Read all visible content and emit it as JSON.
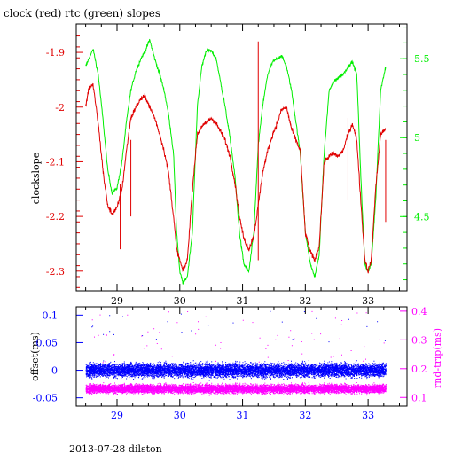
{
  "title": "clock (red) rtc (green) slopes",
  "footer": "2013-07-28 dilston",
  "colors": {
    "clock": "#e00000",
    "rtc": "#00ee00",
    "offset": "#0000ff",
    "rndtrip": "#ff00ff",
    "axis": "#000000"
  },
  "chart_data": [
    {
      "type": "line",
      "title": "clock (red) rtc (green) slopes",
      "ylabel": "clockslope",
      "x_ticks": [
        "29",
        "30",
        "31",
        "32",
        "33"
      ],
      "x_tick_values": [
        29,
        30,
        31,
        32,
        33
      ],
      "xlim": [
        28.35,
        33.62
      ],
      "y_ticks": [
        "-1.9",
        "-2",
        "-2.1",
        "-2.2",
        "-2.3"
      ],
      "y_tick_values": [
        -1.9,
        -2.0,
        -2.1,
        -2.2,
        -2.3
      ],
      "ylim": [
        -2.336,
        -1.848
      ],
      "y2_ticks": [
        "5.5",
        "5",
        "4.5"
      ],
      "y2_tick_values": [
        5.5,
        5.0,
        4.5
      ],
      "y2lim": [
        4.03,
        5.72
      ],
      "series": [
        {
          "name": "clock (red)",
          "axis": "left",
          "x": [
            28.5,
            28.55,
            28.62,
            28.7,
            28.78,
            28.85,
            28.92,
            29.0,
            29.08,
            29.15,
            29.22,
            29.3,
            29.38,
            29.45,
            29.52,
            29.6,
            29.68,
            29.75,
            29.82,
            29.9,
            29.95,
            30.0,
            30.05,
            30.12,
            30.2,
            30.28,
            30.35,
            30.42,
            30.5,
            30.58,
            30.65,
            30.72,
            30.8,
            30.88,
            30.95,
            31.02,
            31.1,
            31.18,
            31.25,
            31.32,
            31.4,
            31.48,
            31.55,
            31.62,
            31.7,
            31.78,
            31.85,
            31.92,
            32.0,
            32.08,
            32.15,
            32.22,
            32.3,
            32.38,
            32.45,
            32.52,
            32.6,
            32.68,
            32.75,
            32.82,
            32.9,
            32.95,
            33.0,
            33.05,
            33.12,
            33.2,
            33.28
          ],
          "values": [
            -2.0,
            -1.965,
            -1.96,
            -2.03,
            -2.12,
            -2.18,
            -2.195,
            -2.185,
            -2.15,
            -2.08,
            -2.02,
            -2.0,
            -1.985,
            -1.98,
            -2.0,
            -2.02,
            -2.05,
            -2.08,
            -2.12,
            -2.2,
            -2.26,
            -2.28,
            -2.3,
            -2.28,
            -2.15,
            -2.05,
            -2.035,
            -2.03,
            -2.02,
            -2.03,
            -2.045,
            -2.06,
            -2.09,
            -2.14,
            -2.2,
            -2.24,
            -2.26,
            -2.235,
            -2.18,
            -2.12,
            -2.08,
            -2.05,
            -2.03,
            -2.005,
            -2.0,
            -2.04,
            -2.06,
            -2.08,
            -2.23,
            -2.265,
            -2.28,
            -2.255,
            -2.1,
            -2.09,
            -2.085,
            -2.09,
            -2.08,
            -2.05,
            -2.03,
            -2.06,
            -2.2,
            -2.28,
            -2.3,
            -2.28,
            -2.15,
            -2.05,
            -2.04
          ]
        },
        {
          "name": "rtc (green)",
          "axis": "right",
          "x": [
            28.5,
            28.55,
            28.62,
            28.7,
            28.78,
            28.85,
            28.92,
            29.0,
            29.08,
            29.15,
            29.22,
            29.3,
            29.38,
            29.45,
            29.52,
            29.6,
            29.68,
            29.75,
            29.82,
            29.9,
            29.95,
            30.0,
            30.05,
            30.12,
            30.2,
            30.28,
            30.35,
            30.42,
            30.5,
            30.58,
            30.65,
            30.72,
            30.8,
            30.88,
            30.95,
            31.02,
            31.1,
            31.18,
            31.25,
            31.32,
            31.4,
            31.48,
            31.55,
            31.62,
            31.7,
            31.78,
            31.85,
            31.92,
            32.0,
            32.08,
            32.15,
            32.22,
            32.3,
            32.38,
            32.45,
            32.52,
            32.6,
            32.68,
            32.75,
            32.82,
            32.9,
            32.95,
            33.0,
            33.05,
            33.12,
            33.2,
            33.28
          ],
          "values": [
            5.45,
            5.5,
            5.56,
            5.4,
            5.1,
            4.8,
            4.65,
            4.68,
            4.85,
            5.1,
            5.3,
            5.42,
            5.5,
            5.55,
            5.62,
            5.5,
            5.4,
            5.3,
            5.15,
            4.9,
            4.4,
            4.15,
            4.08,
            4.12,
            4.4,
            5.2,
            5.45,
            5.55,
            5.55,
            5.5,
            5.35,
            5.2,
            5.0,
            4.75,
            4.4,
            4.2,
            4.15,
            4.4,
            4.95,
            5.2,
            5.4,
            5.48,
            5.5,
            5.52,
            5.45,
            5.3,
            5.1,
            4.9,
            4.4,
            4.2,
            4.12,
            4.25,
            4.9,
            5.3,
            5.35,
            5.38,
            5.4,
            5.45,
            5.48,
            5.4,
            4.6,
            4.2,
            4.15,
            4.2,
            4.6,
            5.3,
            5.45
          ]
        }
      ]
    },
    {
      "type": "scatter",
      "ylabel": "offset(ms)",
      "y2label": "rnd-trip(ms)",
      "x_ticks": [
        "29",
        "30",
        "31",
        "32",
        "33"
      ],
      "x_tick_values": [
        29,
        30,
        31,
        32,
        33
      ],
      "xlim": [
        28.35,
        33.62
      ],
      "y_ticks": [
        "0.1",
        "0.05",
        "0",
        "-0.05"
      ],
      "y_tick_values": [
        0.1,
        0.05,
        0.0,
        -0.05
      ],
      "ylim": [
        -0.065,
        0.115
      ],
      "y2_ticks": [
        "0.4",
        "0.3",
        "0.2",
        "0.1"
      ],
      "y2_tick_values": [
        0.4,
        0.3,
        0.2,
        0.1
      ],
      "y2lim": [
        0.07,
        0.415
      ],
      "series": [
        {
          "name": "offset(ms)",
          "axis": "left",
          "band_center": 0.0,
          "band_halfwidth": 0.02,
          "outlier_max": 0.11
        },
        {
          "name": "rnd-trip(ms)",
          "axis": "right",
          "band_center": 0.13,
          "band_halfwidth": 0.025,
          "outlier_max": 0.4
        }
      ]
    }
  ]
}
